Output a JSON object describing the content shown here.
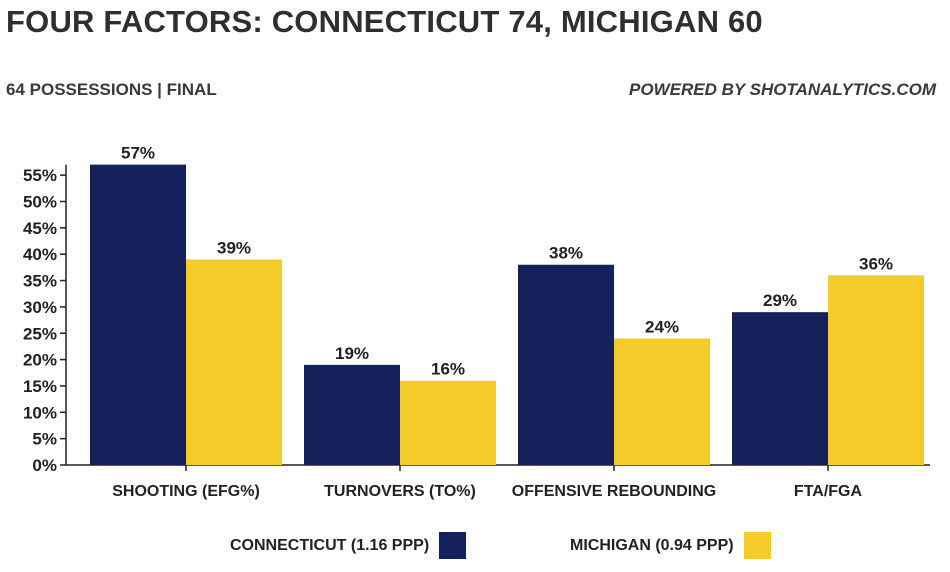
{
  "header": {
    "title": "FOUR FACTORS: CONNECTICUT 74, MICHIGAN 60",
    "subtitle": "64 POSSESSIONS | FINAL",
    "powered_by": "POWERED BY SHOTANALYTICS.COM"
  },
  "colors": {
    "connecticut": "#15215a",
    "michigan": "#f3cc2c"
  },
  "chart_data": {
    "type": "bar",
    "categories": [
      "SHOOTING (EFG%)",
      "TURNOVERS (TO%)",
      "OFFENSIVE REBOUNDING",
      "FTA/FGA"
    ],
    "series": [
      {
        "name": "CONNECTICUT (1.16 PPP)",
        "values": [
          57,
          19,
          38,
          29
        ],
        "labels": [
          "57%",
          "19%",
          "38%",
          "29%"
        ]
      },
      {
        "name": "MICHIGAN (0.94 PPP)",
        "values": [
          39,
          16,
          24,
          36
        ],
        "labels": [
          "39%",
          "16%",
          "24%",
          "36%"
        ]
      }
    ],
    "ylim": [
      0,
      57
    ],
    "yticks": [
      0,
      5,
      10,
      15,
      20,
      25,
      30,
      35,
      40,
      45,
      50,
      55
    ],
    "ytick_labels": [
      "0%",
      "5%",
      "10%",
      "15%",
      "20%",
      "25%",
      "30%",
      "35%",
      "40%",
      "45%",
      "50%",
      "55%"
    ],
    "grid": false,
    "legend_position": "bottom"
  }
}
